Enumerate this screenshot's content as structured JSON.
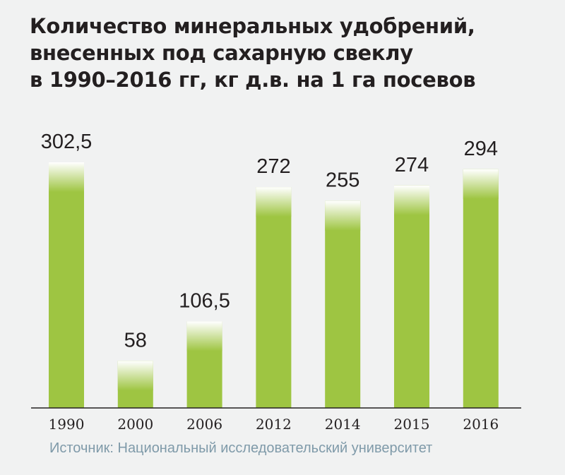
{
  "chart_data": {
    "type": "bar",
    "title_lines": [
      "Количество минеральных удобрений,",
      "внесенных под сахарную свеклу",
      "в 1990–2016 гг, кг д.в. на 1 га посевов"
    ],
    "categories": [
      "1990",
      "2000",
      "2006",
      "2012",
      "2014",
      "2015",
      "2016"
    ],
    "values": [
      302.5,
      58,
      106.5,
      272,
      255,
      274,
      294
    ],
    "value_labels": [
      "302,5",
      "58",
      "106,5",
      "272",
      "255",
      "274",
      "294"
    ],
    "ylim": [
      0,
      302.5
    ],
    "grid": false,
    "legend": "none",
    "source": "Источник: Национальный исследовательский университет",
    "colors": {
      "bar": "#9ec542",
      "bar_fade": "#ffffff",
      "axis": "#231f20",
      "source_text": "#7f9aa9",
      "background": "#f1f2f2"
    }
  }
}
